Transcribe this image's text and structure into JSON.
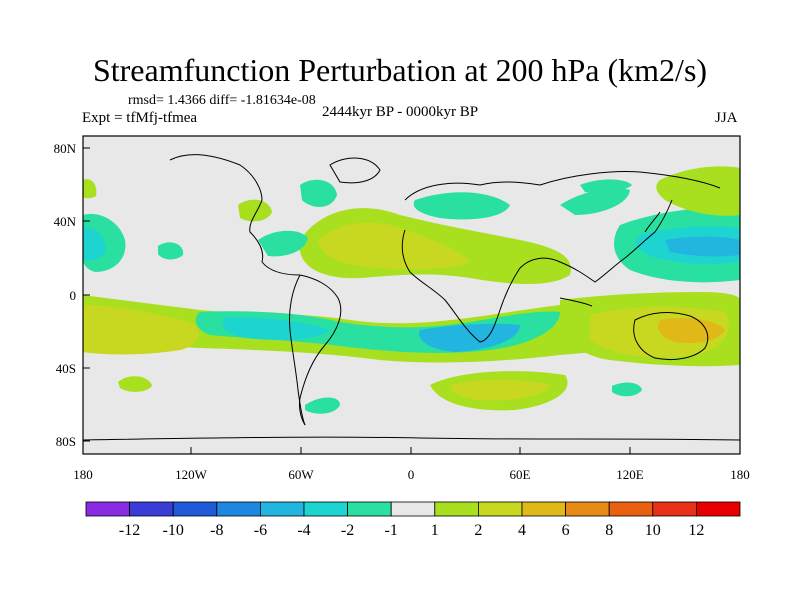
{
  "header": {
    "title": "Streamfunction Perturbation at 200 hPa (km2/s)",
    "stats": "rmsd= 1.4366 diff= -1.81634e-08",
    "experiment": "Expt = tfMfj-tfmea",
    "period": "2444kyr BP - 0000kyr BP",
    "season": "JJA"
  },
  "axes": {
    "lat_labels": [
      "80N",
      "40N",
      "0",
      "40S",
      "80S"
    ],
    "lon_labels": [
      "180",
      "120W",
      "60W",
      "0",
      "60E",
      "120E",
      "180"
    ]
  },
  "colorbar": {
    "labels": [
      "-12",
      "-10",
      "-8",
      "-6",
      "-4",
      "-2",
      "-1",
      "1",
      "2",
      "4",
      "6",
      "8",
      "10",
      "12"
    ],
    "colors": [
      "#8a2be2",
      "#3b3bd6",
      "#1f5ad8",
      "#1e88e0",
      "#22b5e0",
      "#1ed4d0",
      "#2ae0a0",
      "#e8e8e8",
      "#a8e020",
      "#c8d820",
      "#e0b818",
      "#e88a18",
      "#e86010",
      "#e83018",
      "#e80000"
    ]
  },
  "colors": {
    "background_field": "#e8e8e8",
    "coast": "#000000"
  }
}
